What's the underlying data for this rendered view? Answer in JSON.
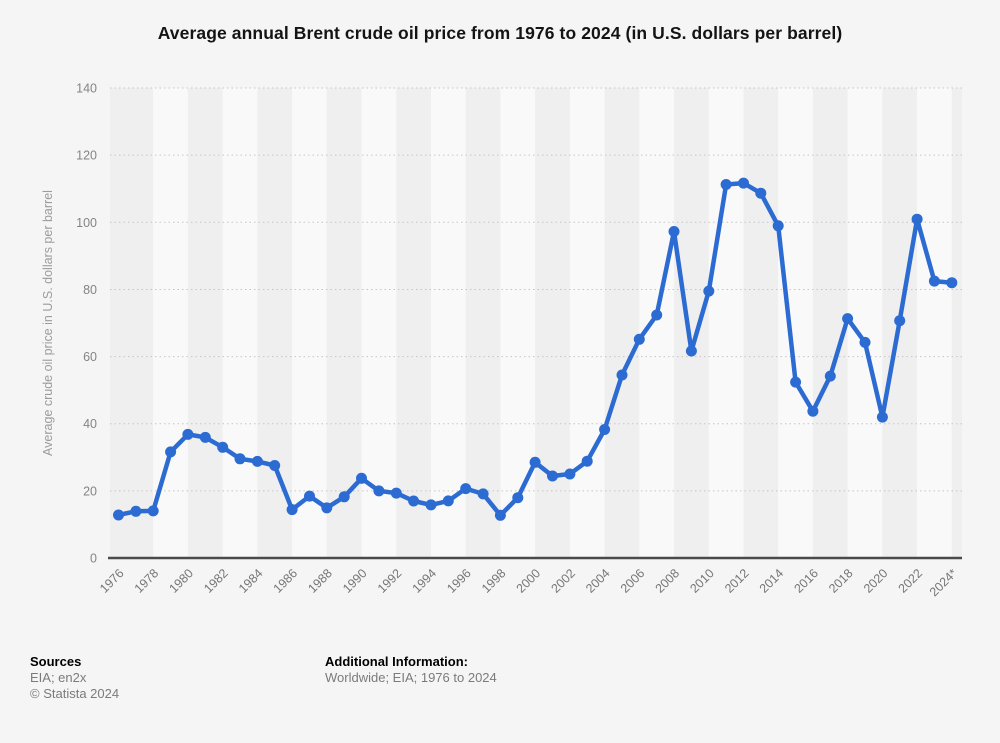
{
  "title": "Average annual Brent crude oil price from 1976 to 2024 (in U.S. dollars per barrel)",
  "chart_data": {
    "type": "line",
    "title": "Average annual Brent crude oil price from 1976 to 2024 (in U.S. dollars per barrel)",
    "xlabel": "",
    "ylabel": "Average crude oil price in U.S. dollars per barrel",
    "ylim": [
      0,
      140
    ],
    "yticks": [
      0,
      20,
      40,
      60,
      80,
      100,
      120,
      140
    ],
    "grid": "horizontal-dotted",
    "legend": "none",
    "marker": "circle",
    "x": [
      1976,
      1977,
      1978,
      1979,
      1980,
      1981,
      1982,
      1983,
      1984,
      1985,
      1986,
      1987,
      1988,
      1989,
      1990,
      1991,
      1992,
      1993,
      1994,
      1995,
      1996,
      1997,
      1998,
      1999,
      2000,
      2001,
      2002,
      2003,
      2004,
      2005,
      2006,
      2007,
      2008,
      2009,
      2010,
      2011,
      2012,
      2013,
      2014,
      2015,
      2016,
      2017,
      2018,
      2019,
      2020,
      2021,
      2022,
      2023,
      2024
    ],
    "series": [
      {
        "name": "Brent crude oil price in U.S. dollars per barrel",
        "values": [
          12.8,
          13.92,
          14.02,
          31.61,
          36.83,
          35.93,
          32.97,
          29.55,
          28.78,
          27.56,
          14.43,
          18.44,
          14.92,
          18.23,
          23.73,
          20.0,
          19.32,
          16.97,
          15.82,
          17.02,
          20.67,
          19.09,
          12.72,
          17.97,
          28.5,
          24.44,
          25.02,
          28.83,
          38.27,
          54.52,
          65.14,
          72.39,
          97.26,
          61.67,
          79.5,
          111.26,
          111.67,
          108.66,
          98.95,
          52.39,
          43.73,
          54.19,
          71.31,
          64.21,
          41.96,
          70.68,
          100.93,
          82.49,
          82.0
        ]
      }
    ],
    "xtick_labels": [
      "1976",
      "1978",
      "1980",
      "1982",
      "1984",
      "1986",
      "1988",
      "1990",
      "1992",
      "1994",
      "1996",
      "1998",
      "2000",
      "2002",
      "2004",
      "2006",
      "2008",
      "2010",
      "2012",
      "2014",
      "2016",
      "2018",
      "2020",
      "2022",
      "2024*"
    ]
  },
  "footer": {
    "sources_label": "Sources",
    "sources_line1": "EIA; en2x",
    "sources_line2": "© Statista 2024",
    "additional_label": "Additional Information:",
    "additional_line1": "Worldwide; EIA; 1976 to 2024"
  },
  "colors": {
    "background": "#f5f5f5",
    "band_dark": "#efefef",
    "band_light": "#f9f9f9",
    "gridline": "#c6c6c6",
    "axis_line": "#4a4a4a",
    "line": "#2c6bd2",
    "tick_text": "#848484",
    "xtick_text": "#767676",
    "axis_title_text": "#9c9c9c",
    "title_text": "#141414"
  }
}
